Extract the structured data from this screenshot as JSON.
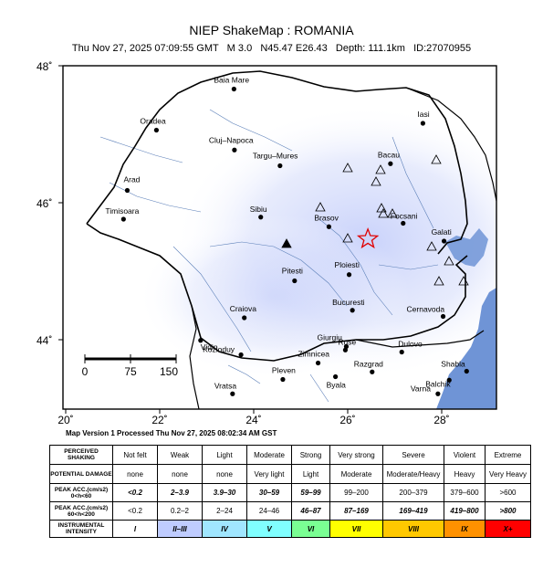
{
  "header": {
    "title": "NIEP ShakeMap : ROMANIA",
    "subtitle": "Thu Nov 27, 2025 07:09:55 GMT   M 3.0   N45.47 E26.43   Depth: 111.1km   ID:27070955"
  },
  "axes": {
    "lat_labels": [
      "48˚",
      "46˚",
      "44˚"
    ],
    "lon_labels": [
      "20˚",
      "22˚",
      "24˚",
      "26˚",
      "28˚"
    ]
  },
  "scale_bar": {
    "labels": [
      "0",
      "75",
      "150"
    ]
  },
  "cities": [
    {
      "name": "Baia Mare",
      "lon": 23.58,
      "lat": 47.66
    },
    {
      "name": "Oradea",
      "lon": 21.93,
      "lat": 47.06
    },
    {
      "name": "Cluj–Napoca",
      "lon": 23.59,
      "lat": 46.77
    },
    {
      "name": "Targu–Mures",
      "lon": 24.56,
      "lat": 46.54
    },
    {
      "name": "Arad",
      "lon": 21.31,
      "lat": 46.18
    },
    {
      "name": "Timisoara",
      "lon": 21.23,
      "lat": 45.76
    },
    {
      "name": "Sibiu",
      "lon": 24.15,
      "lat": 45.79
    },
    {
      "name": "Brasov",
      "lon": 25.6,
      "lat": 45.65
    },
    {
      "name": "Iasi",
      "lon": 27.6,
      "lat": 47.16
    },
    {
      "name": "Bacau",
      "lon": 26.91,
      "lat": 46.57
    },
    {
      "name": "Focsani",
      "lon": 27.18,
      "lat": 45.7
    },
    {
      "name": "Galati",
      "lon": 28.05,
      "lat": 45.44
    },
    {
      "name": "Ploiesti",
      "lon": 26.03,
      "lat": 44.95
    },
    {
      "name": "Pitesti",
      "lon": 24.87,
      "lat": 44.86
    },
    {
      "name": "Bucuresti",
      "lon": 26.1,
      "lat": 44.43
    },
    {
      "name": "Craiova",
      "lon": 23.8,
      "lat": 44.32
    },
    {
      "name": "Cernavoda",
      "lon": 28.03,
      "lat": 44.34
    },
    {
      "name": "Giurgiu",
      "lon": 25.97,
      "lat": 43.9
    },
    {
      "name": "Dulovo",
      "lon": 27.15,
      "lat": 43.82
    },
    {
      "name": "Zimnicea",
      "lon": 25.37,
      "lat": 43.66
    },
    {
      "name": "Ruse",
      "lon": 25.95,
      "lat": 43.85
    },
    {
      "name": "Kozloduy",
      "lon": 23.73,
      "lat": 43.78
    },
    {
      "name": "Vidin",
      "lon": 22.87,
      "lat": 43.99
    },
    {
      "name": "Pleven",
      "lon": 24.62,
      "lat": 43.42
    },
    {
      "name": "Byala",
      "lon": 25.74,
      "lat": 43.46
    },
    {
      "name": "Razgrad",
      "lon": 26.52,
      "lat": 43.53
    },
    {
      "name": "Shabla",
      "lon": 28.53,
      "lat": 43.54
    },
    {
      "name": "Balchik",
      "lon": 28.16,
      "lat": 43.41
    },
    {
      "name": "Vratsa",
      "lon": 23.55,
      "lat": 43.21
    },
    {
      "name": "Varna",
      "lon": 27.92,
      "lat": 43.21
    }
  ],
  "epicenter": {
    "lon": 26.43,
    "lat": 45.47
  },
  "map_version": "Map Version 1 Processed Thu Nov 27, 2025 08:02:34 AM GST",
  "legend": {
    "row_headers": [
      "PERCEIVED SHAKING",
      "POTENTIAL DAMAGE",
      "PEAK ACC.(cm/s2) 0<h<60",
      "PEAK ACC.(cm/s2) 60<h<200",
      "INSTRUMENTAL INTENSITY"
    ],
    "shaking": [
      "Not felt",
      "Weak",
      "Light",
      "Moderate",
      "Strong",
      "Very strong",
      "Severe",
      "Violent",
      "Extreme"
    ],
    "damage": [
      "none",
      "none",
      "none",
      "Very light",
      "Light",
      "Moderate",
      "Moderate/Heavy",
      "Heavy",
      "Very Heavy"
    ],
    "acc_shallow": [
      "<0.2",
      "2–3.9",
      "3.9–30",
      "30–59",
      "59–99",
      "99–200",
      "200–379",
      "379–600",
      ">600"
    ],
    "acc_intermediate": [
      "<0.2",
      "0.2–2",
      "2–24",
      "24–46",
      "46–87",
      "87–169",
      "169–419",
      "419–800",
      ">800"
    ],
    "intensity": [
      "I",
      "II–III",
      "IV",
      "V",
      "VI",
      "VII",
      "VIII",
      "IX",
      "X+"
    ],
    "intensity_colors": [
      "#ffffff",
      "#bfccff",
      "#a0e6ff",
      "#80ffff",
      "#7aff93",
      "#ffff00",
      "#ffc800",
      "#ff9100",
      "#ff0000"
    ]
  }
}
